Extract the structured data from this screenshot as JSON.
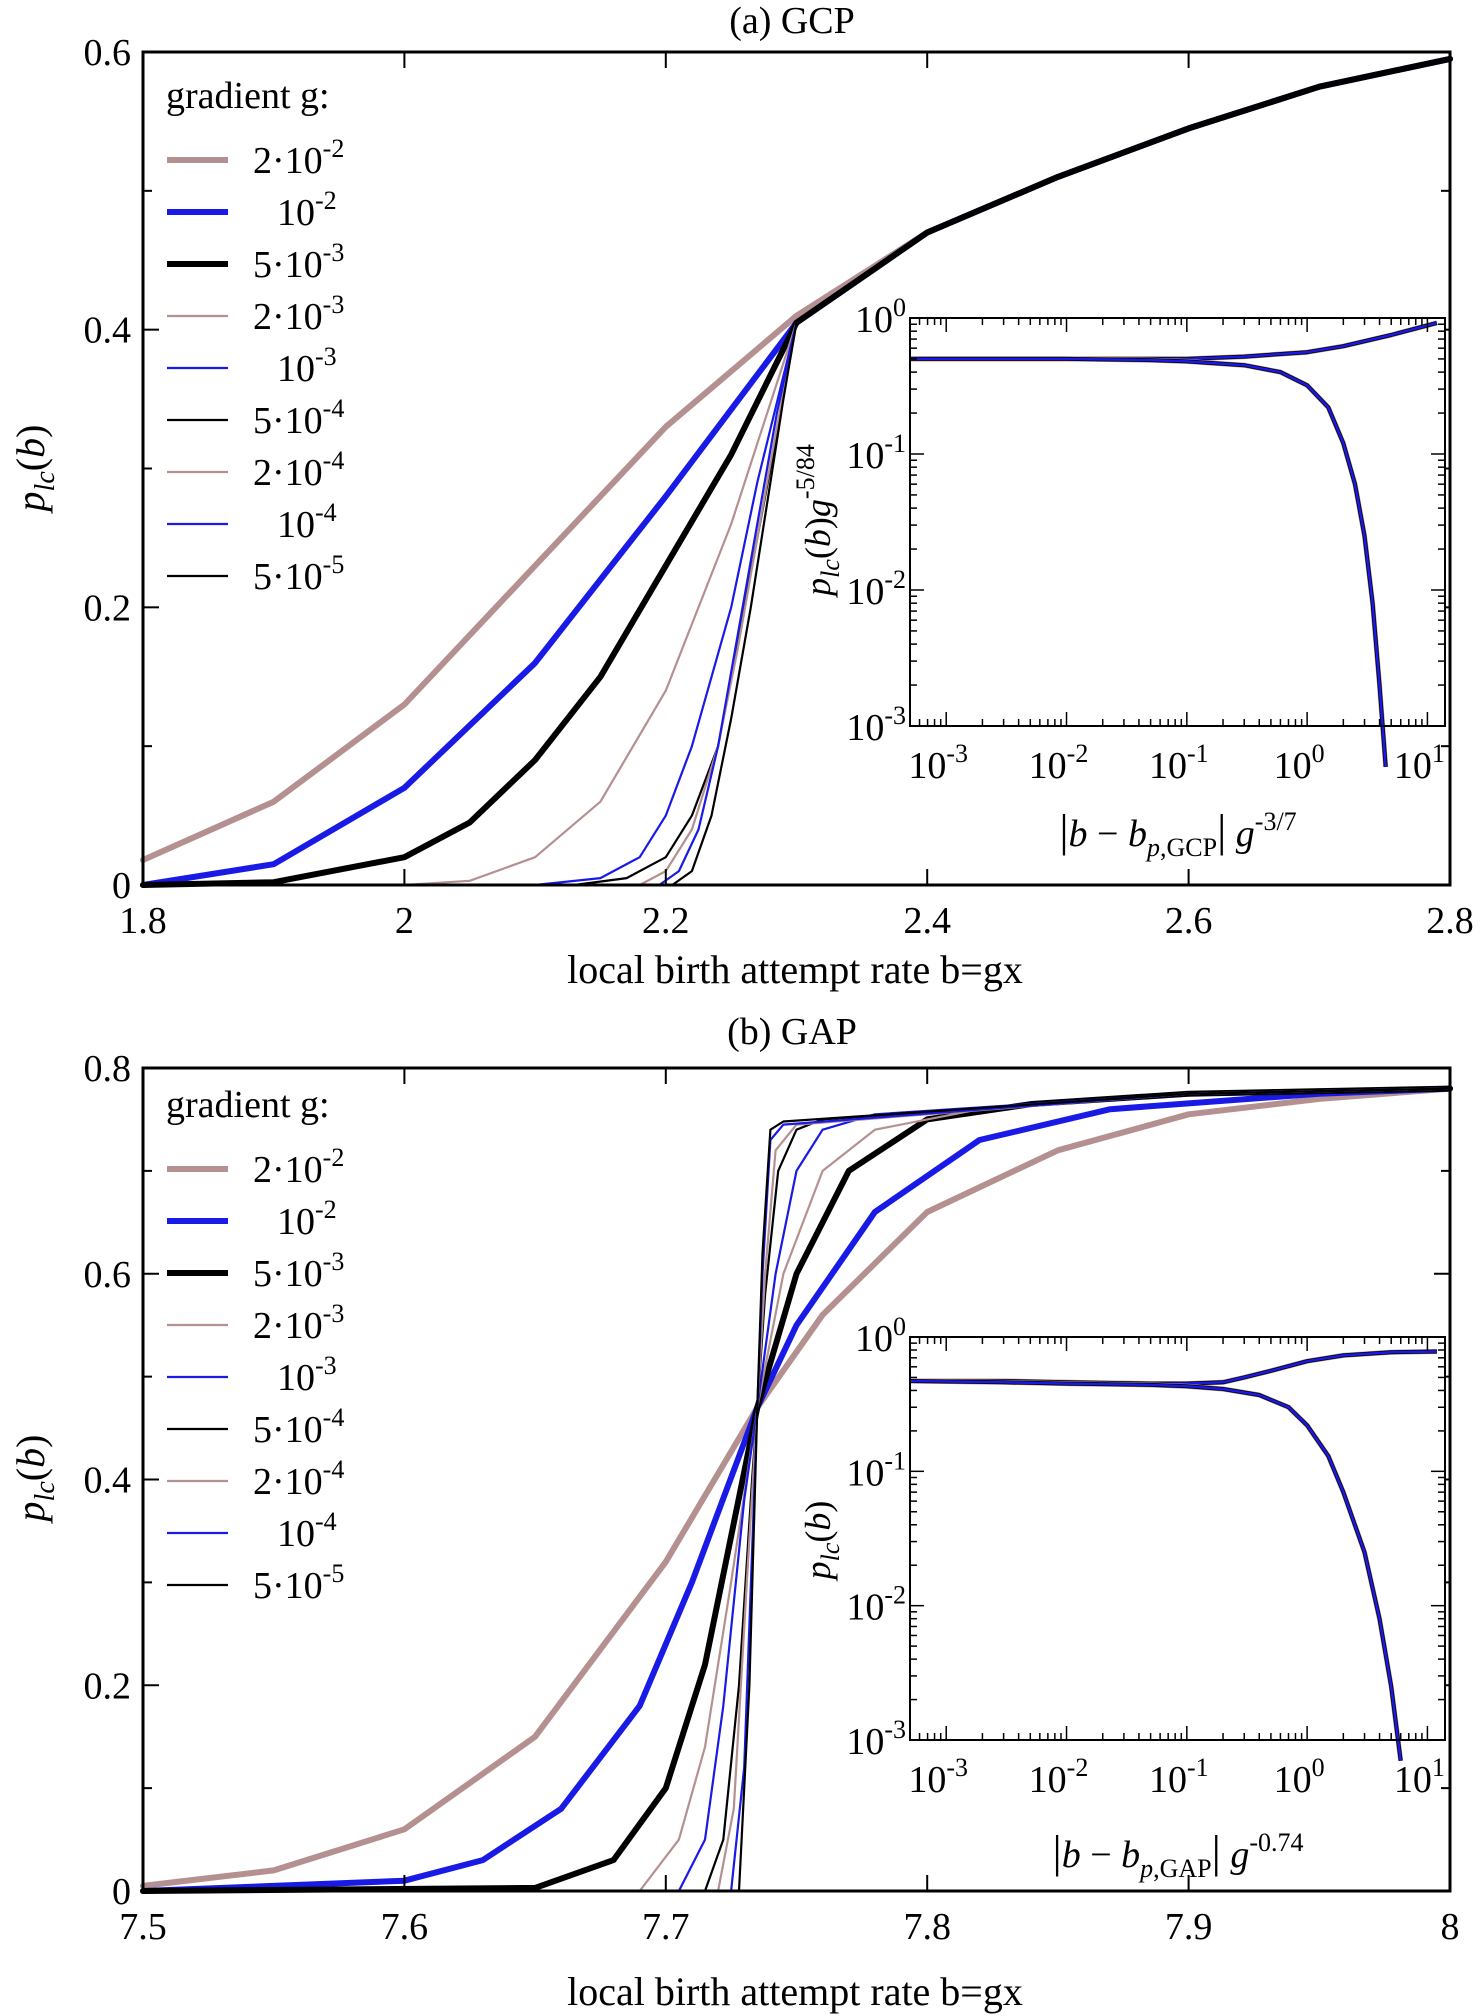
{
  "colors": {
    "brown": "#b59090",
    "blue": "#1a1ae6",
    "black": "#000000"
  },
  "chart_data": [
    {
      "id": "gcp",
      "type": "line",
      "title": "(a) GCP",
      "xlabel": "local birth attempt rate b=gx",
      "ylabel": "p_lc(b)",
      "xlim": [
        1.8,
        2.8
      ],
      "ylim": [
        0,
        0.6
      ],
      "xticks": [
        "1.8",
        "2",
        "2.2",
        "2.4",
        "2.6",
        "2.8"
      ],
      "yticks": [
        "0",
        "0.2",
        "0.4",
        "0.6"
      ],
      "legend_title": "gradient g:",
      "legend_position": "top-left",
      "series": [
        {
          "name": "2·10^-2",
          "g": 0.02,
          "color": "brown",
          "weight": "thick",
          "x": [
            1.8,
            1.9,
            2.0,
            2.1,
            2.2,
            2.3,
            2.4,
            2.5,
            2.6,
            2.7,
            2.8
          ],
          "y": [
            0.018,
            0.06,
            0.13,
            0.23,
            0.33,
            0.41,
            0.47,
            0.51,
            0.545,
            0.575,
            0.595
          ]
        },
        {
          "name": "10^-2",
          "g": 0.01,
          "color": "blue",
          "weight": "thick",
          "x": [
            1.8,
            1.9,
            2.0,
            2.1,
            2.2,
            2.3,
            2.4,
            2.5,
            2.6,
            2.7,
            2.8
          ],
          "y": [
            0.0,
            0.015,
            0.07,
            0.16,
            0.28,
            0.405,
            0.47,
            0.51,
            0.545,
            0.575,
            0.595
          ]
        },
        {
          "name": "5·10^-3",
          "g": 0.005,
          "color": "black",
          "weight": "thick",
          "x": [
            1.8,
            1.9,
            2.0,
            2.05,
            2.1,
            2.15,
            2.2,
            2.25,
            2.3,
            2.4,
            2.5,
            2.6,
            2.7,
            2.8
          ],
          "y": [
            0.0,
            0.002,
            0.02,
            0.045,
            0.09,
            0.15,
            0.23,
            0.31,
            0.405,
            0.47,
            0.51,
            0.545,
            0.575,
            0.595
          ]
        },
        {
          "name": "2·10^-3",
          "g": 0.002,
          "color": "brown",
          "weight": "thin",
          "x": [
            1.8,
            2.0,
            2.05,
            2.1,
            2.15,
            2.2,
            2.25,
            2.3
          ],
          "y": [
            0.0,
            0.0,
            0.003,
            0.02,
            0.06,
            0.14,
            0.26,
            0.405
          ]
        },
        {
          "name": "10^-3",
          "g": 0.001,
          "color": "blue",
          "weight": "thin",
          "x": [
            1.8,
            2.1,
            2.15,
            2.18,
            2.2,
            2.22,
            2.25,
            2.27,
            2.3
          ],
          "y": [
            0.0,
            0.0,
            0.005,
            0.02,
            0.05,
            0.1,
            0.2,
            0.29,
            0.405
          ]
        },
        {
          "name": "5·10^-4",
          "g": 0.0005,
          "color": "black",
          "weight": "thin",
          "x": [
            1.8,
            2.13,
            2.17,
            2.2,
            2.22,
            2.24,
            2.26,
            2.28,
            2.3
          ],
          "y": [
            0.0,
            0.0,
            0.005,
            0.02,
            0.05,
            0.1,
            0.2,
            0.3,
            0.405
          ]
        },
        {
          "name": "2·10^-4",
          "g": 0.0002,
          "color": "brown",
          "weight": "thin",
          "x": [
            1.8,
            2.18,
            2.2,
            2.22,
            2.24,
            2.255,
            2.27,
            2.285,
            2.3
          ],
          "y": [
            0.0,
            0.0,
            0.01,
            0.04,
            0.1,
            0.17,
            0.25,
            0.33,
            0.405
          ]
        },
        {
          "name": "10^-4",
          "g": 0.0001,
          "color": "blue",
          "weight": "thin",
          "x": [
            1.8,
            2.195,
            2.21,
            2.225,
            2.24,
            2.255,
            2.27,
            2.285,
            2.3
          ],
          "y": [
            0.0,
            0.0,
            0.01,
            0.04,
            0.1,
            0.18,
            0.26,
            0.34,
            0.405
          ]
        },
        {
          "name": "5·10^-5",
          "g": 5e-05,
          "color": "black",
          "weight": "thin",
          "x": [
            1.8,
            2.205,
            2.22,
            2.235,
            2.25,
            2.265,
            2.28,
            2.29,
            2.3
          ],
          "y": [
            0.0,
            0.0,
            0.01,
            0.05,
            0.12,
            0.2,
            0.29,
            0.35,
            0.405
          ]
        }
      ],
      "inset": {
        "type": "line",
        "log_x": true,
        "log_y": true,
        "xlabel": "|b − b_p,GCP| g^-3/7",
        "ylabel": "p_lc(b)g^-5/84",
        "xlim": [
          0.0005,
          14
        ],
        "ylim": [
          0.001,
          1
        ],
        "xticks": [
          "10^-3",
          "10^-2",
          "10^-1",
          "10^0",
          "10^1"
        ],
        "yticks": [
          "10^-3",
          "10^-2",
          "10^-1",
          "10^0"
        ],
        "branches": [
          {
            "name": "",
            "x": [
              0.0005,
              0.003,
              0.01,
              0.05,
              0.1,
              0.3,
              1,
              2,
              5,
              12
            ],
            "y": [
              0.5,
              0.5,
              0.5,
              0.5,
              0.5,
              0.52,
              0.56,
              0.62,
              0.75,
              0.92
            ]
          },
          {
            "name": "",
            "x": [
              0.0005,
              0.003,
              0.01,
              0.05,
              0.1,
              0.3,
              0.6,
              1,
              1.5,
              2,
              2.5,
              3,
              3.5,
              4,
              4.5
            ],
            "y": [
              0.5,
              0.5,
              0.5,
              0.49,
              0.48,
              0.45,
              0.4,
              0.32,
              0.22,
              0.12,
              0.06,
              0.025,
              0.008,
              0.002,
              0.0005
            ]
          }
        ]
      }
    },
    {
      "id": "gap",
      "type": "line",
      "title": "(b) GAP",
      "xlabel": "local birth attempt rate b=gx",
      "ylabel": "p_lc(b)",
      "xlim": [
        7.5,
        8.0
      ],
      "ylim": [
        0,
        0.8
      ],
      "xticks": [
        "7.5",
        "7.6",
        "7.7",
        "7.8",
        "7.9",
        "8"
      ],
      "yticks": [
        "0",
        "0.2",
        "0.4",
        "0.6",
        "0.8"
      ],
      "legend_title": "gradient g:",
      "legend_position": "top-left",
      "series": [
        {
          "name": "2·10^-2",
          "g": 0.02,
          "color": "brown",
          "weight": "thick",
          "x": [
            7.5,
            7.55,
            7.6,
            7.65,
            7.7,
            7.735,
            7.76,
            7.8,
            7.85,
            7.9,
            7.95,
            8.0
          ],
          "y": [
            0.005,
            0.02,
            0.06,
            0.15,
            0.32,
            0.47,
            0.56,
            0.66,
            0.72,
            0.755,
            0.77,
            0.78
          ]
        },
        {
          "name": "10^-2",
          "g": 0.01,
          "color": "blue",
          "weight": "thick",
          "x": [
            7.5,
            7.6,
            7.63,
            7.66,
            7.69,
            7.71,
            7.735,
            7.75,
            7.78,
            7.82,
            7.87,
            7.95,
            8.0
          ],
          "y": [
            0.0,
            0.01,
            0.03,
            0.08,
            0.18,
            0.3,
            0.47,
            0.55,
            0.66,
            0.73,
            0.76,
            0.775,
            0.78
          ]
        },
        {
          "name": "5·10^-3",
          "g": 0.005,
          "color": "black",
          "weight": "thick",
          "x": [
            7.5,
            7.65,
            7.68,
            7.7,
            7.715,
            7.735,
            7.75,
            7.77,
            7.8,
            7.84,
            7.9,
            8.0
          ],
          "y": [
            0.0,
            0.003,
            0.03,
            0.1,
            0.22,
            0.47,
            0.6,
            0.7,
            0.75,
            0.765,
            0.775,
            0.78
          ]
        },
        {
          "name": "2·10^-3",
          "g": 0.002,
          "color": "brown",
          "weight": "thin",
          "x": [
            7.5,
            7.69,
            7.705,
            7.715,
            7.725,
            7.735,
            7.745,
            7.76,
            7.78,
            7.82,
            7.9,
            8.0
          ],
          "y": [
            0.0,
            0.0,
            0.05,
            0.14,
            0.3,
            0.47,
            0.6,
            0.7,
            0.74,
            0.76,
            0.775,
            0.78
          ]
        },
        {
          "name": "10^-3",
          "g": 0.001,
          "color": "blue",
          "weight": "thin",
          "x": [
            7.5,
            7.705,
            7.715,
            7.722,
            7.73,
            7.735,
            7.742,
            7.75,
            7.76,
            7.78,
            7.9,
            8.0
          ],
          "y": [
            0.0,
            0.0,
            0.05,
            0.18,
            0.38,
            0.47,
            0.6,
            0.7,
            0.74,
            0.755,
            0.775,
            0.78
          ]
        },
        {
          "name": "5·10^-4",
          "g": 0.0005,
          "color": "black",
          "weight": "thin",
          "x": [
            7.5,
            7.715,
            7.722,
            7.728,
            7.733,
            7.735,
            7.738,
            7.743,
            7.75,
            7.76,
            7.9,
            8.0
          ],
          "y": [
            0.0,
            0.0,
            0.05,
            0.2,
            0.4,
            0.47,
            0.58,
            0.7,
            0.74,
            0.75,
            0.775,
            0.78
          ]
        },
        {
          "name": "2·10^-4",
          "g": 0.0002,
          "color": "brown",
          "weight": "thin",
          "x": [
            7.5,
            7.72,
            7.726,
            7.731,
            7.735,
            7.738,
            7.742,
            7.75,
            7.9,
            8.0
          ],
          "y": [
            0.0,
            0.0,
            0.08,
            0.3,
            0.47,
            0.6,
            0.72,
            0.745,
            0.775,
            0.78
          ]
        },
        {
          "name": "10^-4",
          "g": 0.0001,
          "color": "blue",
          "weight": "thin",
          "x": [
            7.5,
            7.725,
            7.73,
            7.734,
            7.735,
            7.737,
            7.74,
            7.745,
            7.9,
            8.0
          ],
          "y": [
            0.0,
            0.0,
            0.12,
            0.4,
            0.47,
            0.6,
            0.73,
            0.745,
            0.775,
            0.78
          ]
        },
        {
          "name": "5·10^-5",
          "g": 5e-05,
          "color": "black",
          "weight": "thin",
          "x": [
            7.5,
            7.728,
            7.732,
            7.735,
            7.737,
            7.74,
            7.745,
            7.9,
            8.0
          ],
          "y": [
            0.0,
            0.0,
            0.2,
            0.47,
            0.62,
            0.74,
            0.748,
            0.775,
            0.78
          ]
        }
      ],
      "inset": {
        "type": "line",
        "log_x": true,
        "log_y": true,
        "xlabel": "|b − b_p,GAP| g^-0.74",
        "ylabel": "p_lc(b)",
        "xlim": [
          0.0005,
          14
        ],
        "ylim": [
          0.001,
          1
        ],
        "xticks": [
          "10^-3",
          "10^-2",
          "10^-1",
          "10^0",
          "10^1"
        ],
        "yticks": [
          "10^-3",
          "10^-2",
          "10^-1",
          "10^0"
        ],
        "branches": [
          {
            "name": "",
            "x": [
              0.0005,
              0.003,
              0.01,
              0.05,
              0.1,
              0.2,
              0.3,
              0.5,
              1,
              2,
              5,
              12
            ],
            "y": [
              0.47,
              0.47,
              0.46,
              0.45,
              0.45,
              0.46,
              0.5,
              0.56,
              0.66,
              0.73,
              0.77,
              0.78
            ]
          },
          {
            "name": "",
            "x": [
              0.0005,
              0.003,
              0.01,
              0.05,
              0.1,
              0.2,
              0.4,
              0.7,
              1,
              1.5,
              2,
              3,
              4,
              5,
              6
            ],
            "y": [
              0.47,
              0.46,
              0.45,
              0.44,
              0.43,
              0.41,
              0.37,
              0.3,
              0.22,
              0.13,
              0.07,
              0.025,
              0.008,
              0.0025,
              0.0007
            ]
          }
        ]
      }
    }
  ]
}
